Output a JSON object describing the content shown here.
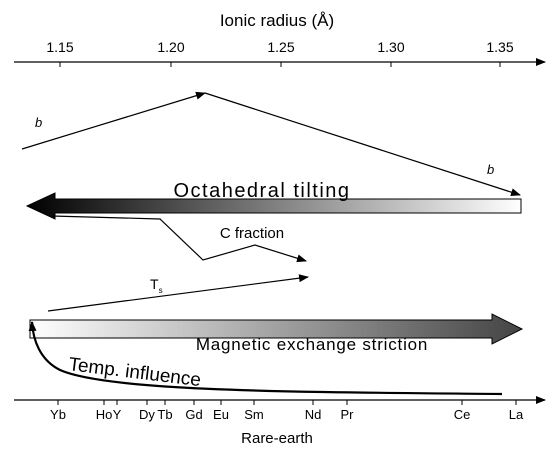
{
  "top_axis": {
    "title": "Ionic radius (Å)",
    "ticks": [
      "1.15",
      "1.20",
      "1.25",
      "1.30",
      "1.35"
    ]
  },
  "labels": {
    "b_left": "b",
    "b_right": "b",
    "octahedral": "Octahedral tilting",
    "c_fraction": "C fraction",
    "ts": "T",
    "ts_sub": "s",
    "magnetic": "Magnetic exchange striction",
    "temp": "Temp. influence"
  },
  "bottom_axis": {
    "title": "Rare-earth",
    "elements": [
      "Yb",
      "Ho",
      "Y",
      "Dy",
      "Tb",
      "Gd",
      "Eu",
      "Sm",
      "Nd",
      "Pr",
      "Ce",
      "La"
    ]
  }
}
